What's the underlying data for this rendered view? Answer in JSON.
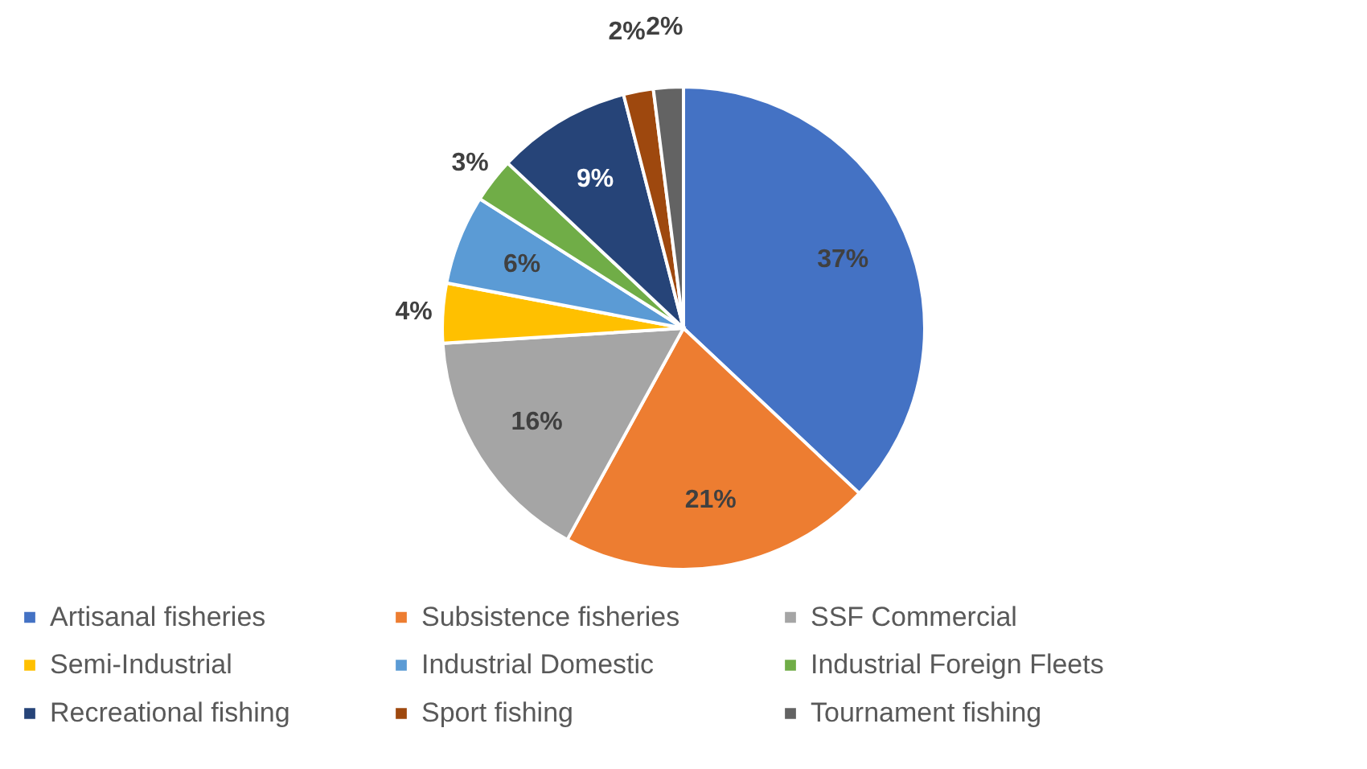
{
  "chart_data": {
    "type": "pie",
    "categories": [
      "Artisanal fisheries",
      "Subsistence fisheries",
      "SSF Commercial",
      "Semi-Industrial",
      "Industrial Domestic",
      "Industrial  Foreign Fleets",
      "Recreational fishing",
      "Sport fishing",
      "Tournament fishing"
    ],
    "values": [
      37,
      21,
      16,
      4,
      6,
      3,
      9,
      2,
      2
    ],
    "value_labels": [
      "37%",
      "21%",
      "16%",
      "4%",
      "6%",
      "3%",
      "9%",
      "2%",
      "2%"
    ],
    "colors": [
      "#4472c4",
      "#ed7d31",
      "#a5a5a5",
      "#ffc000",
      "#5b9bd5",
      "#70ad47",
      "#264478",
      "#9e480e",
      "#636363"
    ],
    "legend": "bottom"
  }
}
